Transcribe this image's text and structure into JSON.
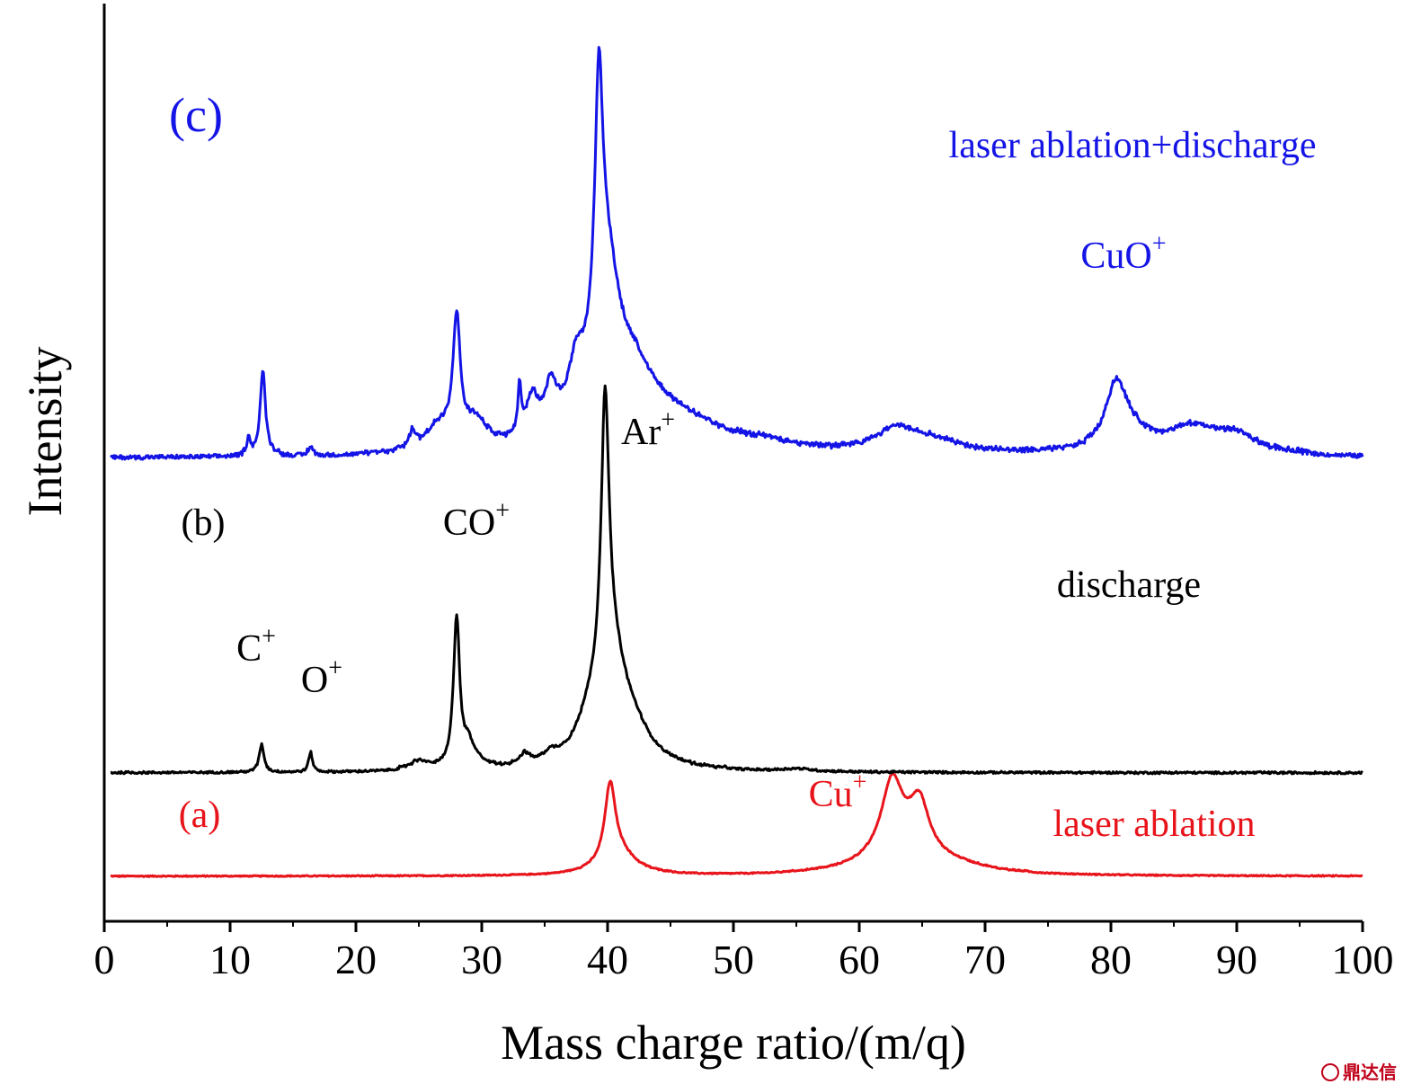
{
  "chart_data": {
    "type": "line",
    "xlabel": "Mass charge ratio/(m/q)",
    "ylabel": "Intensity",
    "xlim": [
      0,
      100
    ],
    "xticks": [
      0,
      10,
      20,
      30,
      40,
      50,
      60,
      70,
      80,
      90,
      100
    ],
    "y_ticks_shown": false,
    "grid": false,
    "legend": "none",
    "series": [
      {
        "name": "laser ablation",
        "panel": "(a)",
        "color": "#e8141b",
        "offset": 0,
        "baseline_noise": 0.006,
        "peaks": [
          {
            "x": 40.2,
            "height": 0.83,
            "width": 0.5
          },
          {
            "x": 40.8,
            "height": 0.25,
            "width": 1.6
          },
          {
            "x": 62.6,
            "height": 0.75,
            "width": 1.0
          },
          {
            "x": 64.8,
            "height": 0.52,
            "width": 0.9
          },
          {
            "x": 63.5,
            "height": 0.32,
            "width": 3.0
          },
          {
            "x": 68.0,
            "height": 0.05,
            "width": 3.0
          }
        ]
      },
      {
        "name": "discharge",
        "panel": "(b)",
        "color": "#000000",
        "offset": 1.15,
        "baseline_noise": 0.012,
        "peaks": [
          {
            "x": 12.5,
            "height": 0.31,
            "width": 0.22
          },
          {
            "x": 16.4,
            "height": 0.21,
            "width": 0.18
          },
          {
            "x": 25.0,
            "height": 0.1,
            "width": 0.9
          },
          {
            "x": 28.0,
            "height": 1.66,
            "width": 0.3
          },
          {
            "x": 28.9,
            "height": 0.2,
            "width": 0.4
          },
          {
            "x": 29.5,
            "height": 0.1,
            "width": 0.9
          },
          {
            "x": 33.4,
            "height": 0.12,
            "width": 0.5
          },
          {
            "x": 35.5,
            "height": 0.1,
            "width": 0.8
          },
          {
            "x": 38.5,
            "height": 0.3,
            "width": 1.2
          },
          {
            "x": 39.8,
            "height": 3.05,
            "width": 0.38
          },
          {
            "x": 40.3,
            "height": 1.1,
            "width": 1.4
          },
          {
            "x": 42.0,
            "height": 0.3,
            "width": 1.8
          },
          {
            "x": 55.0,
            "height": 0.03,
            "width": 1.5
          }
        ]
      },
      {
        "name": "laser ablation+discharge",
        "panel": "(c)",
        "color": "#1414e6",
        "offset": 4.65,
        "baseline_noise": 0.022,
        "peaks": [
          {
            "x": 11.5,
            "height": 0.2,
            "width": 0.15
          },
          {
            "x": 12.6,
            "height": 0.94,
            "width": 0.25
          },
          {
            "x": 16.4,
            "height": 0.09,
            "width": 0.18
          },
          {
            "x": 24.5,
            "height": 0.18,
            "width": 0.3
          },
          {
            "x": 26.5,
            "height": 0.25,
            "width": 1.2
          },
          {
            "x": 28.0,
            "height": 1.35,
            "width": 0.35
          },
          {
            "x": 29.5,
            "height": 0.3,
            "width": 1.2
          },
          {
            "x": 33.0,
            "height": 0.55,
            "width": 0.15
          },
          {
            "x": 34.0,
            "height": 0.45,
            "width": 0.6
          },
          {
            "x": 35.5,
            "height": 0.5,
            "width": 0.6
          },
          {
            "x": 37.5,
            "height": 0.6,
            "width": 0.8
          },
          {
            "x": 39.3,
            "height": 2.7,
            "width": 0.38
          },
          {
            "x": 39.9,
            "height": 1.6,
            "width": 1.2
          },
          {
            "x": 42.0,
            "height": 0.75,
            "width": 2.5
          },
          {
            "x": 46.0,
            "height": 0.25,
            "width": 3.5
          },
          {
            "x": 52.0,
            "height": 0.1,
            "width": 4.0
          },
          {
            "x": 63.0,
            "height": 0.25,
            "width": 2.0
          },
          {
            "x": 66.0,
            "height": 0.12,
            "width": 3.0
          },
          {
            "x": 80.4,
            "height": 0.65,
            "width": 1.0
          },
          {
            "x": 81.5,
            "height": 0.2,
            "width": 2.0
          },
          {
            "x": 86.5,
            "height": 0.28,
            "width": 2.5
          },
          {
            "x": 90.0,
            "height": 0.18,
            "width": 2.0
          }
        ]
      }
    ],
    "annotations": [
      {
        "base": "C",
        "sup": "+",
        "x": 12.5,
        "series": "discharge"
      },
      {
        "base": "O",
        "sup": "+",
        "x": 16.4,
        "series": "discharge"
      },
      {
        "base": "CO",
        "sup": "+",
        "x": 28.0,
        "series": "discharge"
      },
      {
        "base": "Ar",
        "sup": "+",
        "x": 39.8,
        "series": "discharge"
      },
      {
        "base": "Cu",
        "sup": "+",
        "x": 62.6,
        "series": "laser ablation"
      },
      {
        "base": "CuO",
        "sup": "+",
        "x": 80.4,
        "series": "laser ablation+discharge"
      }
    ]
  },
  "watermark": {
    "text": "鼎达信",
    "color": "#c0001a"
  }
}
